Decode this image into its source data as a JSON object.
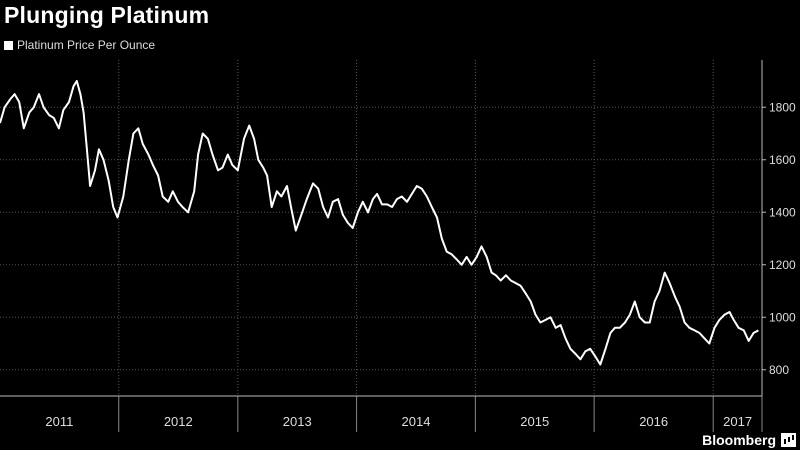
{
  "title": "Plunging Platinum",
  "legend": "Platinum Price Per Ounce",
  "brand": "Bloomberg",
  "brand_icon": "bar-chart-icon",
  "chart_data": {
    "type": "line",
    "title": "Plunging Platinum",
    "xlabel": "",
    "ylabel": "",
    "ylim": [
      700,
      1980
    ],
    "xlim": [
      "2011-01-01",
      "2017-05-31"
    ],
    "yticks": [
      800,
      1000,
      1200,
      1400,
      1600,
      1800
    ],
    "xticks": [
      "2011",
      "2012",
      "2013",
      "2014",
      "2015",
      "2016",
      "2017"
    ],
    "grid": true,
    "legend_position": "top-left",
    "color": "#ffffff",
    "series": [
      {
        "name": "Platinum Price Per Ounce",
        "points": [
          [
            "2011-01-01",
            1740
          ],
          [
            "2011-01-15",
            1800
          ],
          [
            "2011-02-01",
            1830
          ],
          [
            "2011-02-15",
            1850
          ],
          [
            "2011-03-01",
            1820
          ],
          [
            "2011-03-15",
            1720
          ],
          [
            "2011-04-01",
            1780
          ],
          [
            "2011-04-15",
            1800
          ],
          [
            "2011-05-01",
            1850
          ],
          [
            "2011-05-15",
            1800
          ],
          [
            "2011-06-01",
            1770
          ],
          [
            "2011-06-15",
            1760
          ],
          [
            "2011-07-01",
            1720
          ],
          [
            "2011-07-15",
            1790
          ],
          [
            "2011-08-01",
            1820
          ],
          [
            "2011-08-15",
            1880
          ],
          [
            "2011-08-25",
            1900
          ],
          [
            "2011-09-05",
            1850
          ],
          [
            "2011-09-15",
            1780
          ],
          [
            "2011-09-25",
            1640
          ],
          [
            "2011-10-05",
            1500
          ],
          [
            "2011-10-20",
            1560
          ],
          [
            "2011-11-01",
            1640
          ],
          [
            "2011-11-15",
            1600
          ],
          [
            "2011-12-01",
            1520
          ],
          [
            "2011-12-15",
            1420
          ],
          [
            "2011-12-28",
            1380
          ],
          [
            "2012-01-15",
            1460
          ],
          [
            "2012-02-01",
            1600
          ],
          [
            "2012-02-15",
            1700
          ],
          [
            "2012-03-01",
            1720
          ],
          [
            "2012-03-15",
            1660
          ],
          [
            "2012-04-01",
            1620
          ],
          [
            "2012-04-15",
            1580
          ],
          [
            "2012-05-01",
            1540
          ],
          [
            "2012-05-15",
            1460
          ],
          [
            "2012-06-01",
            1440
          ],
          [
            "2012-06-15",
            1480
          ],
          [
            "2012-07-01",
            1440
          ],
          [
            "2012-07-15",
            1420
          ],
          [
            "2012-08-01",
            1400
          ],
          [
            "2012-08-20",
            1480
          ],
          [
            "2012-09-01",
            1620
          ],
          [
            "2012-09-15",
            1700
          ],
          [
            "2012-10-01",
            1680
          ],
          [
            "2012-10-15",
            1620
          ],
          [
            "2012-11-01",
            1560
          ],
          [
            "2012-11-15",
            1570
          ],
          [
            "2012-12-01",
            1620
          ],
          [
            "2012-12-15",
            1580
          ],
          [
            "2013-01-01",
            1560
          ],
          [
            "2013-01-20",
            1680
          ],
          [
            "2013-02-05",
            1730
          ],
          [
            "2013-02-20",
            1680
          ],
          [
            "2013-03-05",
            1600
          ],
          [
            "2013-03-20",
            1570
          ],
          [
            "2013-04-01",
            1540
          ],
          [
            "2013-04-15",
            1420
          ],
          [
            "2013-05-01",
            1480
          ],
          [
            "2013-05-15",
            1460
          ],
          [
            "2013-06-01",
            1500
          ],
          [
            "2013-06-15",
            1410
          ],
          [
            "2013-06-28",
            1330
          ],
          [
            "2013-07-15",
            1390
          ],
          [
            "2013-08-01",
            1450
          ],
          [
            "2013-08-20",
            1510
          ],
          [
            "2013-09-05",
            1490
          ],
          [
            "2013-09-20",
            1420
          ],
          [
            "2013-10-05",
            1380
          ],
          [
            "2013-10-20",
            1440
          ],
          [
            "2013-11-05",
            1450
          ],
          [
            "2013-11-20",
            1390
          ],
          [
            "2013-12-05",
            1360
          ],
          [
            "2013-12-20",
            1340
          ],
          [
            "2014-01-05",
            1400
          ],
          [
            "2014-01-20",
            1440
          ],
          [
            "2014-02-05",
            1400
          ],
          [
            "2014-02-20",
            1450
          ],
          [
            "2014-03-05",
            1470
          ],
          [
            "2014-03-20",
            1430
          ],
          [
            "2014-04-05",
            1430
          ],
          [
            "2014-04-20",
            1420
          ],
          [
            "2014-05-05",
            1450
          ],
          [
            "2014-05-20",
            1460
          ],
          [
            "2014-06-05",
            1440
          ],
          [
            "2014-06-20",
            1470
          ],
          [
            "2014-07-05",
            1500
          ],
          [
            "2014-07-20",
            1490
          ],
          [
            "2014-08-05",
            1460
          ],
          [
            "2014-08-20",
            1420
          ],
          [
            "2014-09-05",
            1380
          ],
          [
            "2014-09-20",
            1300
          ],
          [
            "2014-10-05",
            1250
          ],
          [
            "2014-10-20",
            1240
          ],
          [
            "2014-11-05",
            1220
          ],
          [
            "2014-11-20",
            1200
          ],
          [
            "2014-12-05",
            1230
          ],
          [
            "2014-12-20",
            1200
          ],
          [
            "2015-01-05",
            1230
          ],
          [
            "2015-01-20",
            1270
          ],
          [
            "2015-02-05",
            1230
          ],
          [
            "2015-02-20",
            1170
          ],
          [
            "2015-03-05",
            1160
          ],
          [
            "2015-03-20",
            1140
          ],
          [
            "2015-04-05",
            1160
          ],
          [
            "2015-04-20",
            1140
          ],
          [
            "2015-05-05",
            1130
          ],
          [
            "2015-05-20",
            1120
          ],
          [
            "2015-06-05",
            1090
          ],
          [
            "2015-06-20",
            1060
          ],
          [
            "2015-07-05",
            1010
          ],
          [
            "2015-07-20",
            980
          ],
          [
            "2015-08-05",
            990
          ],
          [
            "2015-08-20",
            1000
          ],
          [
            "2015-09-05",
            960
          ],
          [
            "2015-09-20",
            970
          ],
          [
            "2015-10-05",
            920
          ],
          [
            "2015-10-20",
            880
          ],
          [
            "2015-11-05",
            860
          ],
          [
            "2015-11-20",
            840
          ],
          [
            "2015-12-05",
            870
          ],
          [
            "2015-12-20",
            880
          ],
          [
            "2016-01-05",
            850
          ],
          [
            "2016-01-20",
            820
          ],
          [
            "2016-02-05",
            880
          ],
          [
            "2016-02-20",
            940
          ],
          [
            "2016-03-05",
            960
          ],
          [
            "2016-03-20",
            960
          ],
          [
            "2016-04-05",
            980
          ],
          [
            "2016-04-20",
            1010
          ],
          [
            "2016-05-05",
            1060
          ],
          [
            "2016-05-20",
            1000
          ],
          [
            "2016-06-05",
            980
          ],
          [
            "2016-06-20",
            980
          ],
          [
            "2016-07-05",
            1060
          ],
          [
            "2016-07-20",
            1100
          ],
          [
            "2016-08-05",
            1170
          ],
          [
            "2016-08-20",
            1130
          ],
          [
            "2016-09-05",
            1080
          ],
          [
            "2016-09-20",
            1040
          ],
          [
            "2016-10-05",
            980
          ],
          [
            "2016-10-20",
            960
          ],
          [
            "2016-11-05",
            950
          ],
          [
            "2016-11-20",
            940
          ],
          [
            "2016-12-05",
            920
          ],
          [
            "2016-12-20",
            900
          ],
          [
            "2017-01-05",
            960
          ],
          [
            "2017-01-20",
            990
          ],
          [
            "2017-02-05",
            1010
          ],
          [
            "2017-02-20",
            1020
          ],
          [
            "2017-03-05",
            990
          ],
          [
            "2017-03-20",
            960
          ],
          [
            "2017-04-05",
            950
          ],
          [
            "2017-04-20",
            910
          ],
          [
            "2017-05-05",
            940
          ],
          [
            "2017-05-20",
            950
          ]
        ]
      }
    ]
  }
}
